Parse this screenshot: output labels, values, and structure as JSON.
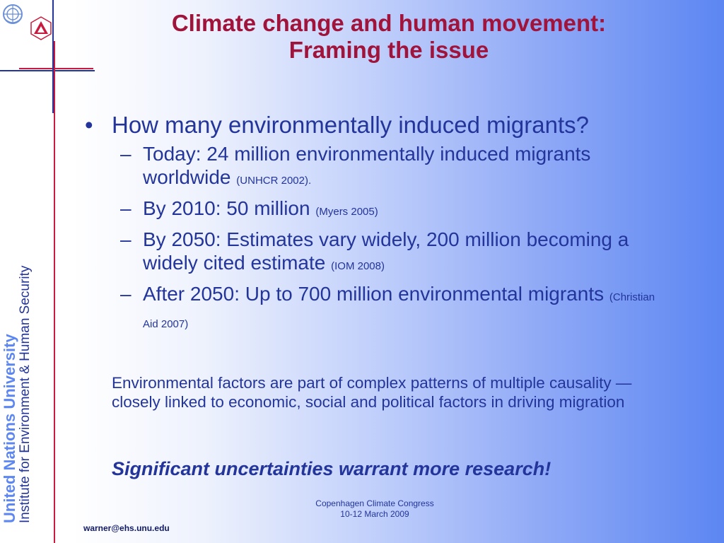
{
  "colors": {
    "title": "#a0143c",
    "body_text": "#23359a",
    "accent_blue": "#5c86f2",
    "accent_red": "#c81b3f"
  },
  "logos": {
    "un": "un-emblem-icon",
    "unu": "unu-logo-icon"
  },
  "sidebar": {
    "org": "United Nations University",
    "institute": "Institute for Environment & Human Security"
  },
  "title": {
    "line1": "Climate change and human movement:",
    "line2": "Framing the issue"
  },
  "bullet": {
    "marker": "•",
    "text": "How many environmentally induced migrants?",
    "dash": "–",
    "subs": [
      {
        "text": "Today: 24 million environmentally induced migrants worldwide",
        "cite": "(UNHCR 2002)."
      },
      {
        "text": "By 2010: 50 million",
        "cite": "(Myers 2005)"
      },
      {
        "text": "By 2050: Estimates vary widely, 200 million becoming a widely cited estimate",
        "cite": "(IOM 2008)"
      },
      {
        "text": "After 2050: Up to 700 million environmental migrants",
        "cite": "(Christian Aid 2007)"
      }
    ]
  },
  "paragraph": "Environmental factors are part of complex patterns of multiple causality — closely linked to economic, social and political factors in driving migration",
  "emphasis": "Significant uncertainties warrant more research!",
  "footer": {
    "line1": "Copenhagen Climate Congress",
    "line2": "10-12 March 2009"
  },
  "email": "warner@ehs.unu.edu"
}
